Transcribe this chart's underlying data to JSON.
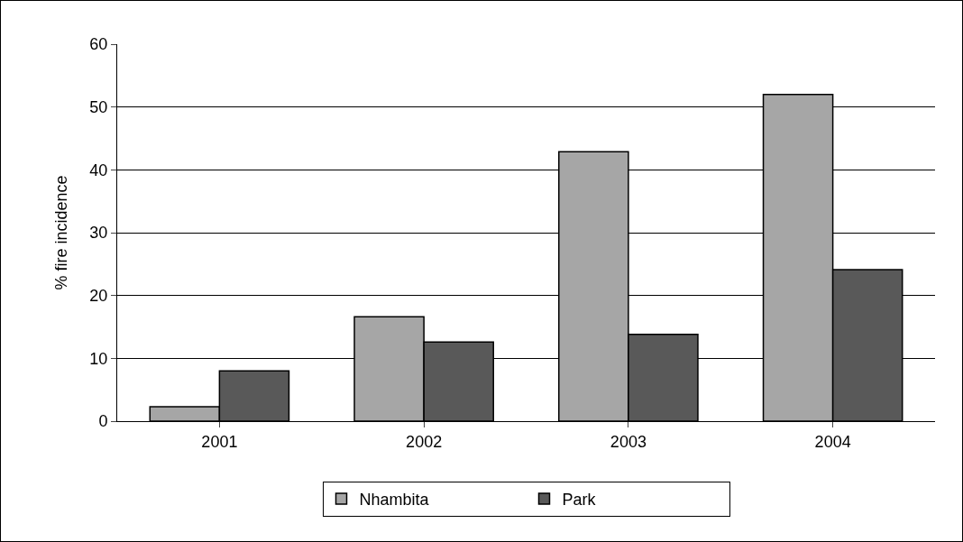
{
  "chart_data": {
    "type": "bar",
    "ylabel": "% fire incidence",
    "categories": [
      "2001",
      "2002",
      "2003",
      "2004"
    ],
    "series": [
      {
        "name": "Nhambita",
        "color": "#a6a6a6",
        "values": [
          2.3,
          16.6,
          42.9,
          52.0
        ]
      },
      {
        "name": "Park",
        "color": "#595959",
        "values": [
          8.0,
          12.6,
          13.8,
          24.1
        ]
      }
    ],
    "ylim": [
      0,
      60
    ],
    "yticks": [
      0,
      10,
      20,
      30,
      40,
      50,
      60
    ],
    "grid": "y",
    "legend": "bottom"
  }
}
